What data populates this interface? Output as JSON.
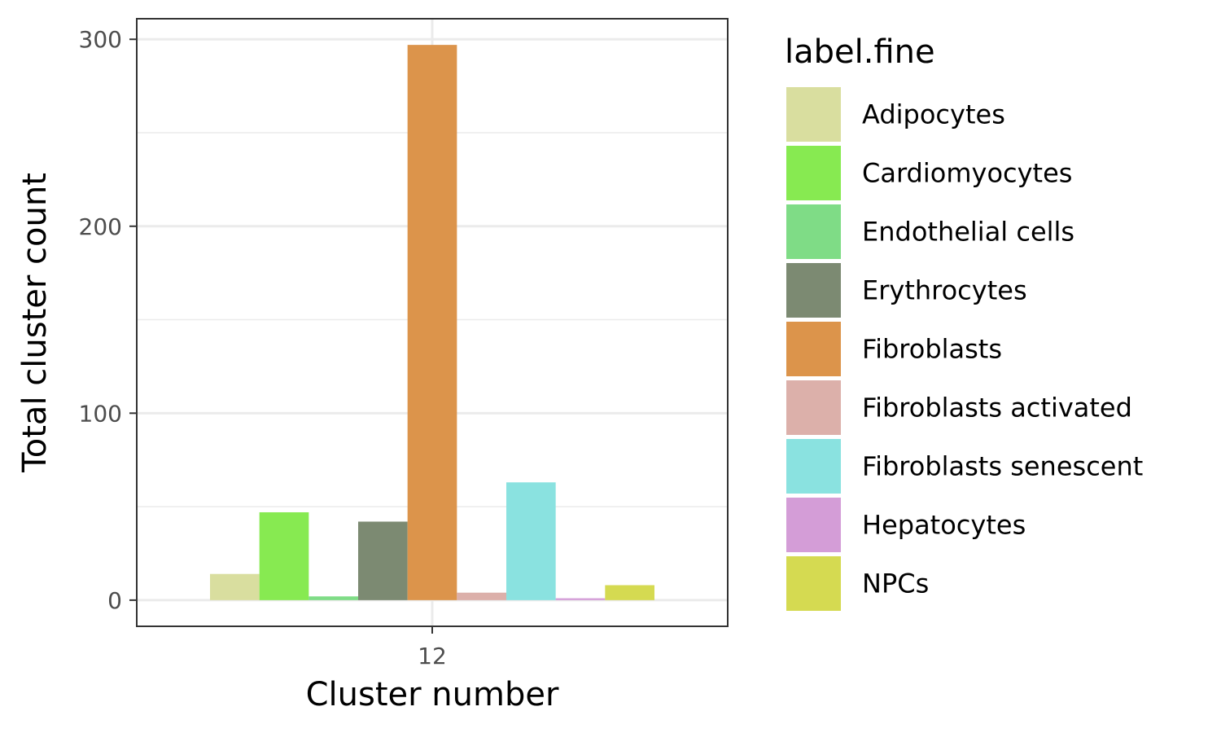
{
  "chart_data": {
    "type": "bar",
    "categories": [
      "12"
    ],
    "xlabel": "Cluster number",
    "ylabel": "Total cluster count",
    "ylim": [
      -14,
      311
    ],
    "yticks": [
      0,
      100,
      200,
      300
    ],
    "grid": true,
    "legend_title": "label.fine",
    "legend_position": "right",
    "series": [
      {
        "name": "Adipocytes",
        "values": [
          14
        ],
        "color": "#d9de9f"
      },
      {
        "name": "Cardiomyocytes",
        "values": [
          47
        ],
        "color": "#87ea51"
      },
      {
        "name": "Endothelial cells",
        "values": [
          2
        ],
        "color": "#7fdc86"
      },
      {
        "name": "Erythrocytes",
        "values": [
          42
        ],
        "color": "#7c8a72"
      },
      {
        "name": "Fibroblasts",
        "values": [
          297
        ],
        "color": "#dc944b"
      },
      {
        "name": "Fibroblasts activated",
        "values": [
          4
        ],
        "color": "#dcb0aa"
      },
      {
        "name": "Fibroblasts senescent",
        "values": [
          63
        ],
        "color": "#8ae2e0"
      },
      {
        "name": "Hepatocytes",
        "values": [
          1
        ],
        "color": "#d49dd7"
      },
      {
        "name": "NPCs",
        "values": [
          8
        ],
        "color": "#d5da51"
      }
    ]
  }
}
